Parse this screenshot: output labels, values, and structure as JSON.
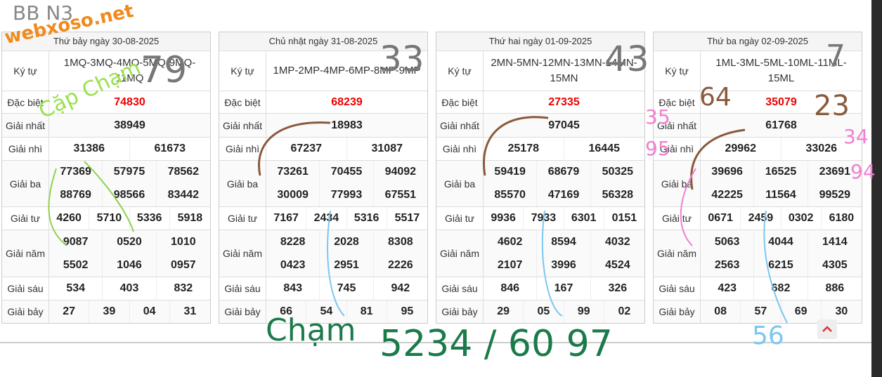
{
  "tables": [
    {
      "date": "Thứ bảy ngày 30-08-2025",
      "code_label": "Ký tự",
      "code": "1MQ-3MQ-4MQ-5MQ-9MQ-11MQ",
      "rows": [
        {
          "label": "Đặc biệt",
          "values": [
            "74830"
          ]
        },
        {
          "label": "Giải nhất",
          "values": [
            "38949"
          ]
        },
        {
          "label": "Giải nhì",
          "values": [
            "31386",
            "61673"
          ]
        },
        {
          "label": "Giải ba",
          "values": [
            "77369",
            "57975",
            "78562",
            "88769",
            "98566",
            "83442"
          ]
        },
        {
          "label": "Giải tư",
          "values": [
            "4260",
            "5710",
            "5336",
            "5918"
          ]
        },
        {
          "label": "Giải năm",
          "values": [
            "9087",
            "0520",
            "1010",
            "5502",
            "1046",
            "0957"
          ]
        },
        {
          "label": "Giải sáu",
          "values": [
            "534",
            "403",
            "832"
          ]
        },
        {
          "label": "Giải bảy",
          "values": [
            "27",
            "39",
            "04",
            "31"
          ]
        }
      ]
    },
    {
      "date": "Chủ nhật ngày 31-08-2025",
      "code_label": "Ký tự",
      "code": "1MP-2MP-4MP-6MP-8MP-9MP",
      "rows": [
        {
          "label": "Đặc biệt",
          "values": [
            "68239"
          ]
        },
        {
          "label": "Giải nhất",
          "values": [
            "18983"
          ]
        },
        {
          "label": "Giải nhì",
          "values": [
            "67237",
            "31087"
          ]
        },
        {
          "label": "Giải ba",
          "values": [
            "73261",
            "70455",
            "94092",
            "30009",
            "77993",
            "67551"
          ]
        },
        {
          "label": "Giải tư",
          "values": [
            "7167",
            "2434",
            "5316",
            "5517"
          ]
        },
        {
          "label": "Giải năm",
          "values": [
            "8228",
            "2028",
            "8308",
            "0423",
            "2951",
            "2226"
          ]
        },
        {
          "label": "Giải sáu",
          "values": [
            "843",
            "745",
            "942"
          ]
        },
        {
          "label": "Giải bảy",
          "values": [
            "66",
            "54",
            "81",
            "95"
          ]
        }
      ]
    },
    {
      "date": "Thứ hai ngày 01-09-2025",
      "code_label": "Ký tự",
      "code": "2MN-5MN-12MN-13MN-14MN-15MN",
      "rows": [
        {
          "label": "Đặc biệt",
          "values": [
            "27335"
          ]
        },
        {
          "label": "Giải nhất",
          "values": [
            "97045"
          ]
        },
        {
          "label": "Giải nhì",
          "values": [
            "25178",
            "16445"
          ]
        },
        {
          "label": "Giải ba",
          "values": [
            "59419",
            "68679",
            "50325",
            "85570",
            "47169",
            "56328"
          ]
        },
        {
          "label": "Giải tư",
          "values": [
            "9936",
            "7933",
            "6301",
            "0151"
          ]
        },
        {
          "label": "Giải năm",
          "values": [
            "4602",
            "8594",
            "4032",
            "2107",
            "3996",
            "4524"
          ]
        },
        {
          "label": "Giải sáu",
          "values": [
            "846",
            "167",
            "326"
          ]
        },
        {
          "label": "Giải bảy",
          "values": [
            "29",
            "05",
            "99",
            "02"
          ]
        }
      ]
    },
    {
      "date": "Thứ ba ngày 02-09-2025",
      "code_label": "Ký tự",
      "code": "1ML-3ML-5ML-10ML-11ML-15ML",
      "rows": [
        {
          "label": "Đặc biệt",
          "values": [
            "35079"
          ]
        },
        {
          "label": "Giải nhất",
          "values": [
            "61768"
          ]
        },
        {
          "label": "Giải nhì",
          "values": [
            "29962",
            "33026"
          ]
        },
        {
          "label": "Giải ba",
          "values": [
            "39696",
            "16525",
            "23691",
            "42225",
            "11564",
            "99529"
          ]
        },
        {
          "label": "Giải tư",
          "values": [
            "0671",
            "2459",
            "0302",
            "6180"
          ]
        },
        {
          "label": "Giải năm",
          "values": [
            "5063",
            "4044",
            "1414",
            "2563",
            "6215",
            "4305"
          ]
        },
        {
          "label": "Giải sáu",
          "values": [
            "423",
            "682",
            "886"
          ]
        },
        {
          "label": "Giải bảy",
          "values": [
            "08",
            "57",
            "69",
            "30"
          ]
        }
      ]
    }
  ],
  "annotations": [
    "BB N3",
    "webxoso.net",
    "79",
    "Cặp Chạm",
    "33",
    "43",
    "7",
    "64",
    "23",
    "35",
    "95",
    "34",
    "94",
    "Chạm",
    "5234 / 60 97",
    "56"
  ]
}
